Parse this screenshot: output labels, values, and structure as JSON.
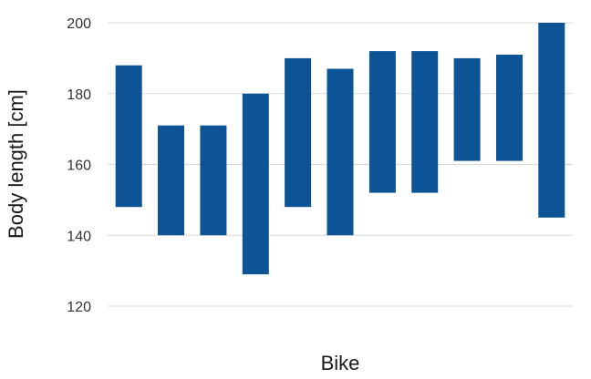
{
  "chart_data": {
    "type": "bar",
    "subtype": "floating-range",
    "title": "",
    "xlabel": "Bike",
    "ylabel": "Body length [cm]",
    "ylim": [
      120,
      200
    ],
    "yticks": [
      120,
      140,
      160,
      180,
      200
    ],
    "grid": true,
    "legend": "none",
    "bar_color": "#0c5496",
    "categories": [
      "",
      "",
      "",
      "",
      "",
      "",
      "",
      "",
      "",
      "",
      ""
    ],
    "ranges": [
      [
        148,
        188
      ],
      [
        140,
        171
      ],
      [
        140,
        171
      ],
      [
        129,
        180
      ],
      [
        148,
        190
      ],
      [
        140,
        187
      ],
      [
        152,
        192
      ],
      [
        152,
        192
      ],
      [
        161,
        190
      ],
      [
        161,
        191
      ],
      [
        145,
        200
      ]
    ]
  }
}
